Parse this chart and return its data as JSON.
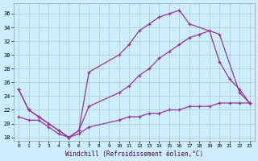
{
  "xlabel": "Windchill (Refroidissement éolien,°C)",
  "bg_color": "#cceeff",
  "line_color": "#993399",
  "grid_color": "#aacccc",
  "xlim": [
    -0.5,
    23.5
  ],
  "ylim": [
    17.5,
    37.5
  ],
  "yticks": [
    18,
    20,
    22,
    24,
    26,
    28,
    30,
    32,
    34,
    36
  ],
  "xticks": [
    0,
    1,
    2,
    3,
    4,
    5,
    6,
    7,
    8,
    9,
    10,
    11,
    12,
    13,
    14,
    15,
    16,
    17,
    18,
    19,
    20,
    21,
    22,
    23
  ],
  "series": [
    {
      "x": [
        0,
        1,
        2,
        3,
        4,
        5,
        6,
        7,
        10,
        11,
        12,
        13,
        14,
        15,
        16,
        17,
        20,
        22,
        23
      ],
      "y": [
        25,
        22,
        21,
        20,
        19,
        18,
        19,
        27.5,
        30,
        31.5,
        33.5,
        34.5,
        35.5,
        36,
        36.5,
        34.5,
        33,
        24.5,
        23
      ]
    },
    {
      "x": [
        0,
        1,
        2,
        3,
        4,
        5,
        6,
        7,
        10,
        11,
        12,
        13,
        14,
        15,
        16,
        17,
        18,
        19,
        20,
        21,
        22,
        23
      ],
      "y": [
        25,
        22,
        21,
        20,
        19,
        18,
        19,
        22.5,
        24.5,
        25.5,
        27,
        28,
        29.5,
        30.5,
        31.5,
        32.5,
        33,
        33.5,
        29,
        26.5,
        25,
        23
      ]
    },
    {
      "x": [
        0,
        1,
        2,
        3,
        4,
        5,
        6,
        7,
        10,
        11,
        12,
        13,
        14,
        15,
        16,
        17,
        18,
        19,
        20,
        21,
        22,
        23
      ],
      "y": [
        21,
        20.5,
        20.5,
        19.5,
        18.5,
        18,
        18.5,
        19.5,
        20.5,
        21,
        21,
        21.5,
        21.5,
        22,
        22,
        22.5,
        22.5,
        22.5,
        23,
        23,
        23,
        23
      ]
    }
  ]
}
